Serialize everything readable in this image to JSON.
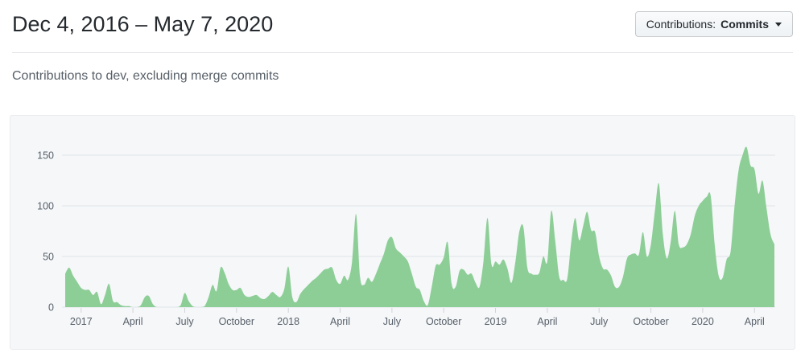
{
  "header": {
    "title": "Dec 4, 2016 – May 7, 2020",
    "dropdown": {
      "prefix": "Contributions:",
      "value": "Commits"
    }
  },
  "subtitle": "Contributions to dev, excluding merge commits",
  "chart_data": {
    "type": "area",
    "title": "Contributions to dev, excluding merge commits",
    "x_unit": "week",
    "x_start_label": "Dec 4, 2016",
    "x_end_label": "May 7, 2020",
    "x_tick_labels": [
      "2017",
      "April",
      "July",
      "October",
      "2018",
      "April",
      "July",
      "October",
      "2019",
      "April",
      "July",
      "October",
      "2020",
      "April"
    ],
    "x_tick_weeks": [
      4,
      17,
      30,
      43,
      56,
      69,
      82,
      95,
      108,
      121,
      134,
      147,
      160,
      173
    ],
    "y_ticks": [
      0,
      50,
      100,
      150
    ],
    "ylim": [
      0,
      165
    ],
    "grid": true,
    "legend_position": "none",
    "area_color": "#8dce97",
    "grid_color": "#e1e4e8",
    "tick_color": "#d1d5da",
    "label_color": "#586069",
    "panel_bg": "#f5f7f9",
    "values": [
      33,
      39,
      31,
      25,
      19,
      17,
      17,
      12,
      15,
      3,
      12,
      23,
      6,
      5,
      2,
      1,
      1,
      0,
      0,
      2,
      10,
      11,
      3,
      0,
      0,
      0,
      0,
      0,
      0,
      2,
      14,
      6,
      1,
      0,
      0,
      1,
      10,
      22,
      16,
      39,
      34,
      23,
      17,
      17,
      19,
      12,
      10,
      11,
      12,
      9,
      8,
      11,
      15,
      12,
      10,
      18,
      40,
      10,
      5,
      13,
      18,
      22,
      26,
      29,
      33,
      37,
      38,
      39,
      27,
      23,
      31,
      27,
      45,
      92,
      30,
      22,
      29,
      25,
      33,
      43,
      53,
      66,
      69,
      58,
      54,
      50,
      45,
      33,
      20,
      17,
      6,
      2,
      20,
      41,
      42,
      49,
      64,
      23,
      20,
      36,
      37,
      32,
      33,
      24,
      20,
      46,
      88,
      42,
      45,
      42,
      47,
      38,
      24,
      45,
      75,
      79,
      39,
      33,
      32,
      34,
      50,
      45,
      95,
      65,
      30,
      27,
      28,
      64,
      88,
      66,
      80,
      94,
      76,
      74,
      50,
      38,
      37,
      31,
      20,
      20,
      30,
      48,
      52,
      53,
      52,
      74,
      50,
      62,
      95,
      122,
      72,
      48,
      65,
      95,
      62,
      59,
      62,
      72,
      90,
      100,
      105,
      109,
      110,
      62,
      31,
      29,
      47,
      55,
      100,
      135,
      150,
      158,
      140,
      136,
      112,
      125,
      98,
      72,
      62
    ]
  }
}
